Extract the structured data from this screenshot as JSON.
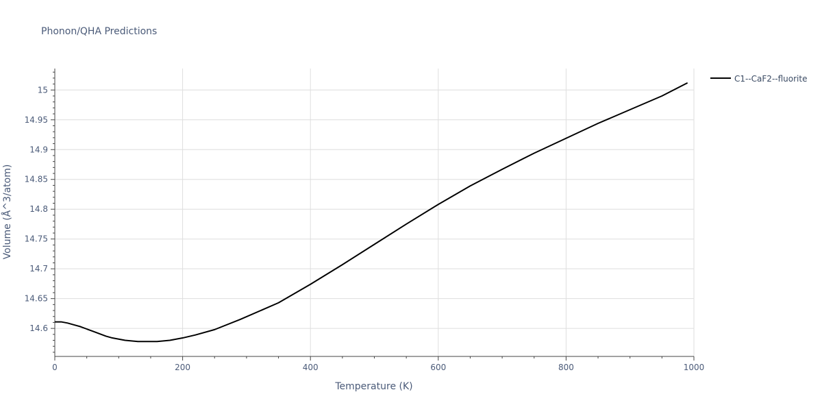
{
  "chart_data": {
    "type": "line",
    "title": "Phonon/QHA Predictions",
    "xlabel": "Temperature (K)",
    "ylabel": "Volume (Å^3/atom)",
    "xlim": [
      0,
      1000
    ],
    "ylim": [
      14.553,
      15.036
    ],
    "grid": true,
    "legend_position": "top-right",
    "x_ticks": [
      0,
      200,
      400,
      600,
      800,
      1000
    ],
    "y_ticks": [
      14.6,
      14.65,
      14.7,
      14.75,
      14.8,
      14.85,
      14.9,
      14.95,
      15
    ],
    "x_tick_labels": [
      "0",
      "200",
      "400",
      "600",
      "800",
      "1000"
    ],
    "y_tick_labels": [
      "14.6",
      "14.65",
      "14.7",
      "14.75",
      "14.8",
      "14.85",
      "14.9",
      "14.95",
      "15"
    ],
    "series": [
      {
        "name": "C1--CaF2--fluorite",
        "color": "#000000",
        "x": [
          0,
          10,
          20,
          30,
          40,
          50,
          60,
          70,
          80,
          90,
          100,
          110,
          120,
          130,
          140,
          150,
          160,
          170,
          180,
          190,
          200,
          220,
          250,
          290,
          350,
          400,
          450,
          500,
          550,
          600,
          650,
          700,
          750,
          800,
          850,
          900,
          950,
          990
        ],
        "y": [
          14.611,
          14.611,
          14.609,
          14.606,
          14.603,
          14.599,
          14.595,
          14.591,
          14.587,
          14.584,
          14.582,
          14.58,
          14.579,
          14.578,
          14.578,
          14.578,
          14.578,
          14.579,
          14.58,
          14.582,
          14.584,
          14.589,
          14.598,
          14.615,
          14.643,
          14.674,
          14.707,
          14.741,
          14.775,
          14.808,
          14.839,
          14.867,
          14.894,
          14.919,
          14.944,
          14.967,
          14.99,
          15.012
        ]
      }
    ]
  }
}
